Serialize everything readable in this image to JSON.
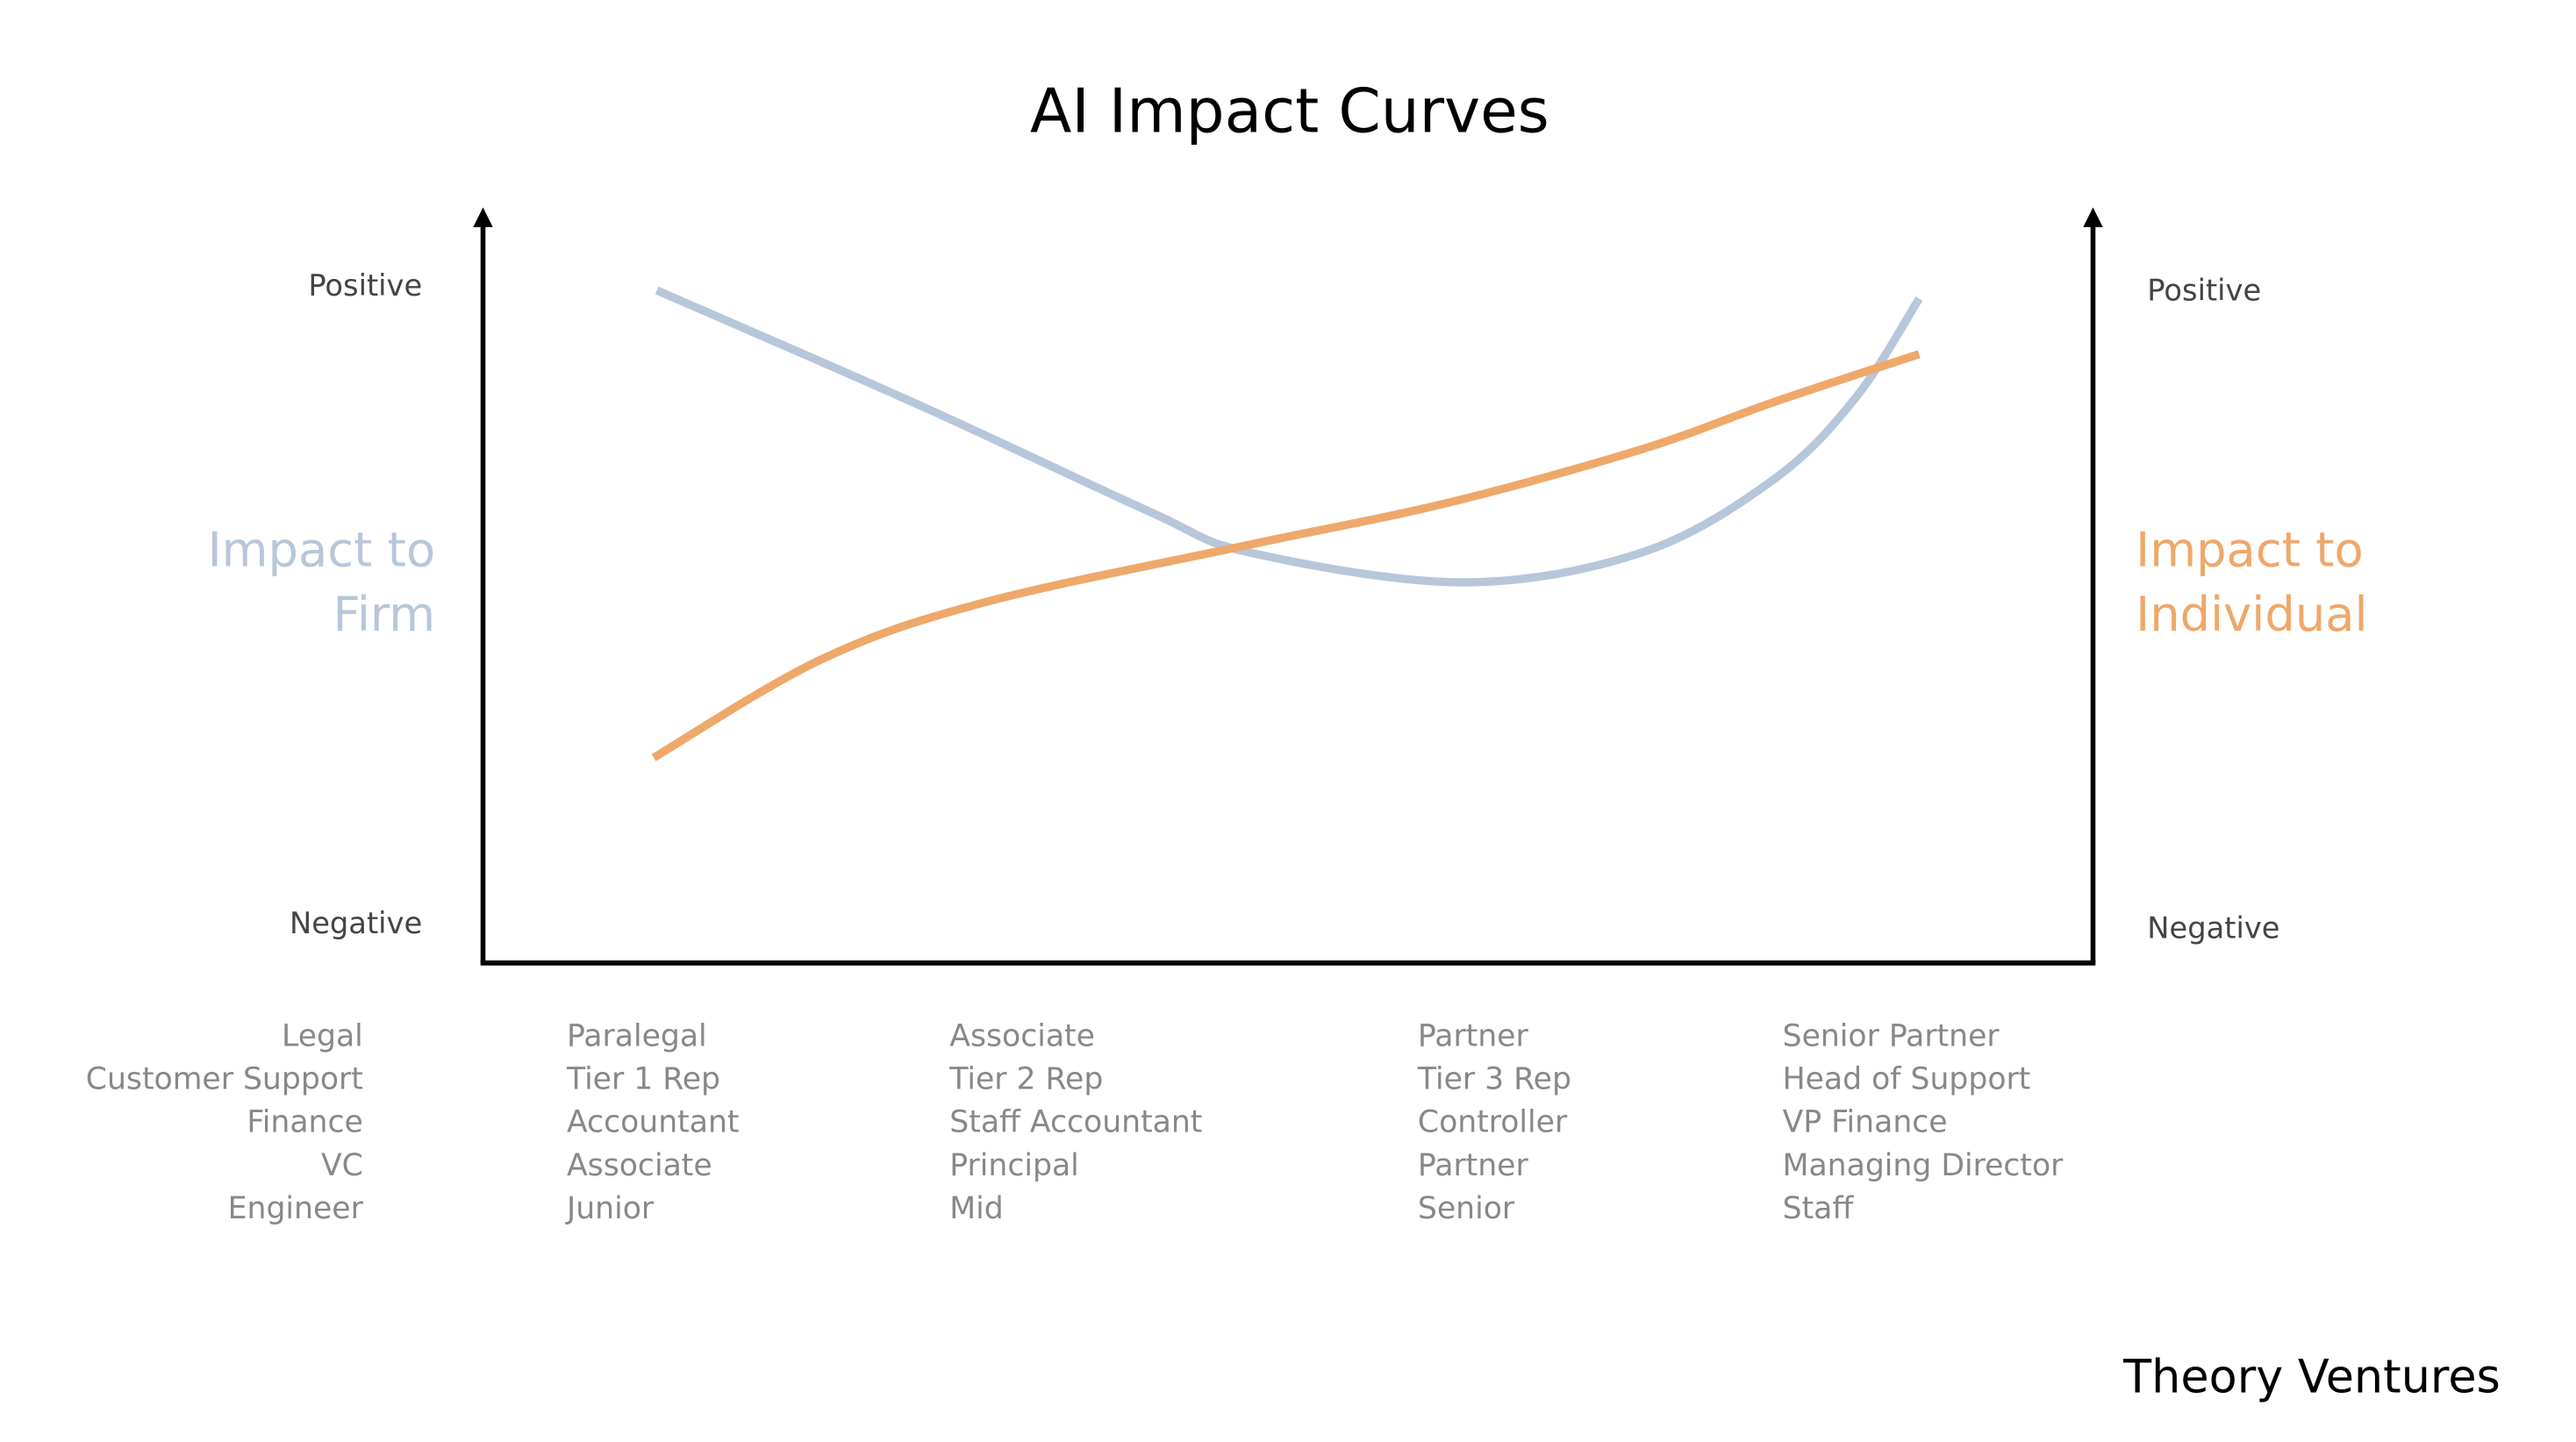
{
  "chart_data": {
    "type": "line",
    "title": "AI Impact Curves",
    "xlim": [
      0,
      100
    ],
    "ylim": [
      -6,
      112
    ],
    "yticks": [
      {
        "value": 100,
        "label": "Positive"
      },
      {
        "value": 0,
        "label": "Negative"
      }
    ],
    "y2lim": [
      -6,
      112
    ],
    "y2ticks": [
      {
        "value": 100,
        "label": "Positive"
      },
      {
        "value": 0,
        "label": "Negative"
      }
    ],
    "series": [
      {
        "name": "Impact to Firm",
        "color": "#b8c6da",
        "x": [
          10.8,
          27.1,
          41.4,
          47.6,
          60.8,
          72,
          80.2,
          85.3,
          89.2
        ],
        "values": [
          99.5,
          81.5,
          64.8,
          58.4,
          53.7,
          58.4,
          69.9,
          82.8,
          98.2
        ]
      },
      {
        "name": "Impact to Individual",
        "color": "#eea86a",
        "axis": "y2",
        "x": [
          10.6,
          21,
          31.2,
          47.6,
          59.8,
          72,
          80.2,
          89.2
        ],
        "values": [
          26.2,
          41.6,
          50.6,
          59.6,
          66.1,
          74.6,
          82,
          89.5
        ]
      }
    ],
    "row_labels": [
      "Legal",
      "Customer Support",
      "Finance",
      "VC",
      "Engineer"
    ],
    "columns": [
      [
        "Paralegal",
        "Tier 1 Rep",
        "Accountant",
        "Associate",
        "Junior"
      ],
      [
        "Associate",
        "Tier 2 Rep",
        "Staff Accountant",
        "Principal",
        "Mid"
      ],
      [
        "Partner",
        "Tier 3 Rep",
        "Controller",
        "Partner",
        "Senior"
      ],
      [
        "Senior Partner",
        "Head of Support",
        "VP Finance",
        "Managing Director",
        "Staff"
      ]
    ],
    "footer": "Theory Ventures"
  }
}
